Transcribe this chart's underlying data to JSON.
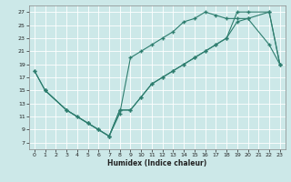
{
  "xlabel": "Humidex (Indice chaleur)",
  "bg_color": "#cce8e8",
  "grid_color": "#ffffff",
  "line_color": "#2d7d6e",
  "xlim": [
    -0.5,
    23.5
  ],
  "ylim": [
    6,
    28
  ],
  "xticks": [
    0,
    1,
    2,
    3,
    4,
    5,
    6,
    7,
    8,
    9,
    10,
    11,
    12,
    13,
    14,
    15,
    16,
    17,
    18,
    19,
    20,
    21,
    22,
    23
  ],
  "yticks": [
    7,
    9,
    11,
    13,
    15,
    17,
    19,
    21,
    23,
    25,
    27
  ],
  "line1_x": [
    0,
    1,
    3,
    5,
    6,
    7,
    8,
    9,
    10,
    11,
    12,
    13,
    14,
    15,
    16,
    17,
    18,
    19,
    20,
    22,
    23
  ],
  "line1_y": [
    18,
    15,
    12,
    10,
    9,
    8,
    11.5,
    20,
    21,
    22,
    23,
    24,
    25.5,
    26,
    27,
    26.5,
    26,
    26,
    26,
    27,
    19
  ],
  "line2_x": [
    0,
    1,
    3,
    4,
    5,
    6,
    7,
    8,
    9,
    10,
    11,
    12,
    13,
    14,
    15,
    16,
    17,
    18,
    19,
    20,
    22,
    23
  ],
  "line2_y": [
    18,
    15,
    12,
    11,
    10,
    9,
    8,
    12,
    12,
    14,
    16,
    17,
    18,
    19,
    20,
    21,
    22,
    23,
    25.5,
    26,
    22,
    19
  ],
  "line3_x": [
    1,
    3,
    4,
    5,
    6,
    7,
    8,
    9,
    10,
    11,
    12,
    13,
    14,
    15,
    16,
    17,
    18,
    19,
    20,
    22,
    23
  ],
  "line3_y": [
    15,
    12,
    11,
    10,
    9,
    8,
    12,
    12,
    14,
    16,
    17,
    18,
    19,
    20,
    21,
    22,
    23,
    27,
    27,
    27,
    19
  ]
}
